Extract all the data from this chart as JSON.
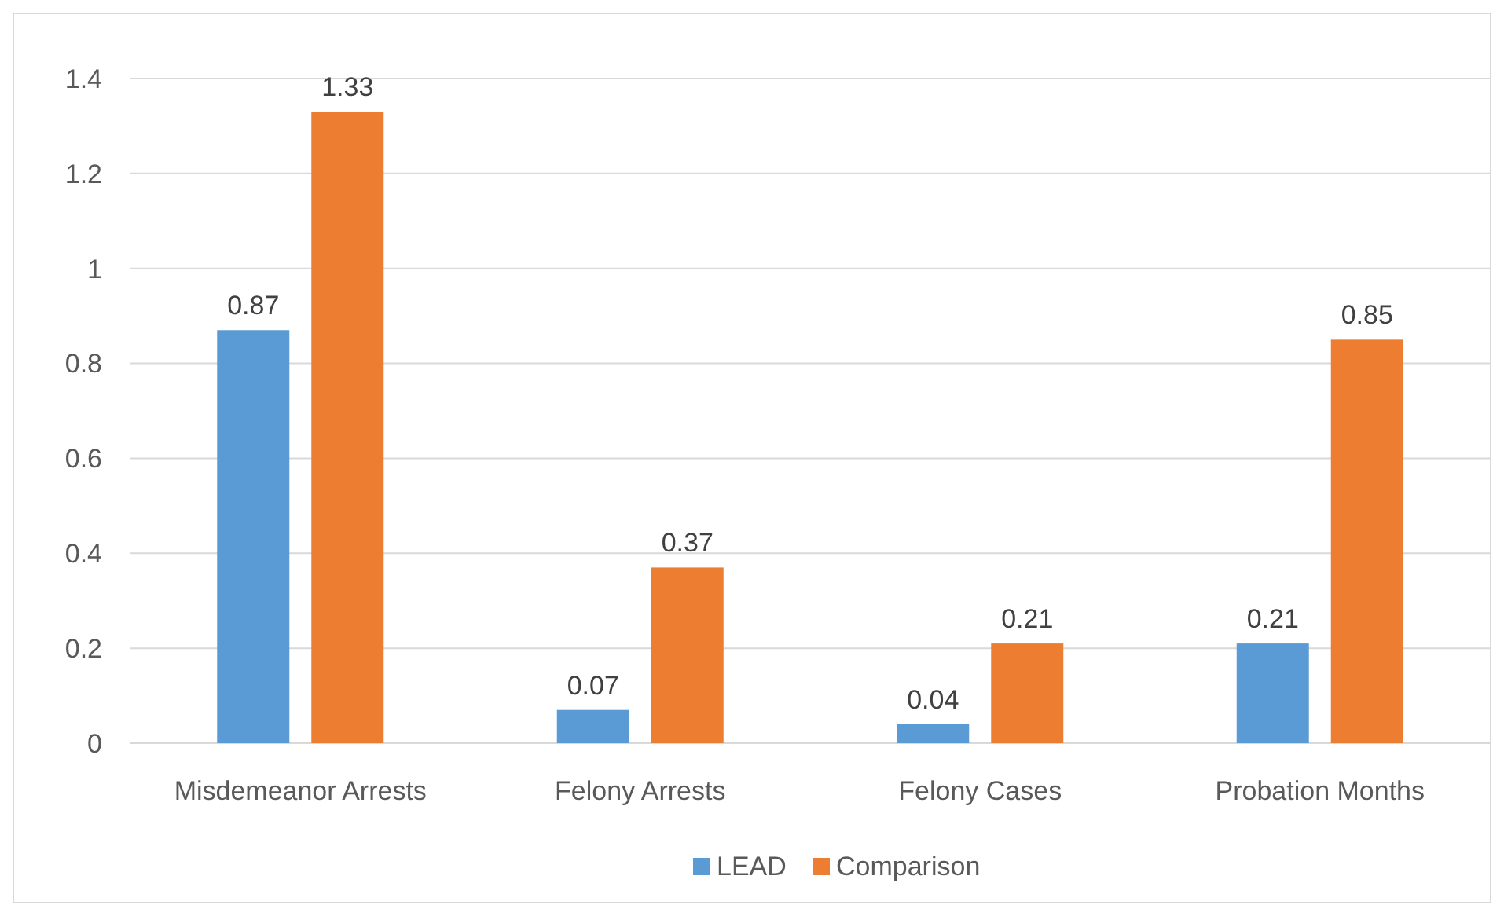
{
  "chart_data": {
    "type": "bar",
    "categories": [
      "Misdemeanor Arrests",
      "Felony Arrests",
      "Felony Cases",
      "Probation Months"
    ],
    "series": [
      {
        "name": "LEAD",
        "color": "#5b9bd5",
        "values": [
          0.87,
          0.07,
          0.04,
          0.21
        ]
      },
      {
        "name": "Comparison",
        "color": "#ed7d31",
        "values": [
          1.33,
          0.37,
          0.21,
          0.85
        ]
      }
    ],
    "ylim": [
      0,
      1.4
    ],
    "yticks": [
      0,
      0.2,
      0.4,
      0.6,
      0.8,
      1,
      1.2,
      1.4
    ],
    "grid": "y",
    "legend": "bottom",
    "data_labels": true
  }
}
